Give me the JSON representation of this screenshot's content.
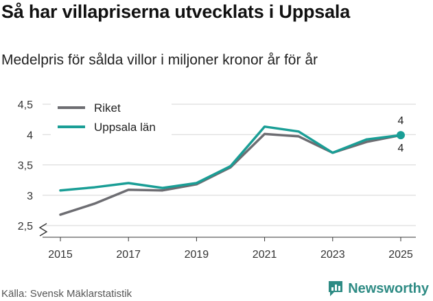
{
  "header": {
    "title": "Så har villapriserna utvecklats i Uppsala",
    "subtitle": "Medelpris för sålda villor i miljoner kronor år för år"
  },
  "footer": {
    "source": "Källa: Svensk Mäklarstatistik",
    "brand": "Newsworthy",
    "brand_color": "#2e8b84"
  },
  "chart_data": {
    "type": "line",
    "title": "Så har villapriserna utvecklats i Uppsala",
    "subtitle": "Medelpris för sålda villor i miljoner kronor år för år",
    "xlabel": "",
    "ylabel": "",
    "x": [
      2015,
      2016,
      2017,
      2018,
      2019,
      2020,
      2021,
      2022,
      2023,
      2024,
      2025
    ],
    "xticks": [
      "2015",
      "2017",
      "2019",
      "2021",
      "2023",
      "2025"
    ],
    "yticks": [
      "2,5",
      "3",
      "3,5",
      "4",
      "4,5"
    ],
    "ylim": [
      2.5,
      4.5
    ],
    "grid": true,
    "y_axis_break": true,
    "legend_position": "top-left",
    "series": [
      {
        "name": "Riket",
        "color": "#6d6d72",
        "values": [
          2.68,
          2.86,
          3.09,
          3.08,
          3.18,
          3.46,
          4.01,
          3.97,
          3.7,
          3.88,
          3.99
        ]
      },
      {
        "name": "Uppsala län",
        "color": "#1a9e96",
        "values": [
          3.08,
          3.13,
          3.2,
          3.12,
          3.2,
          3.48,
          4.13,
          4.05,
          3.7,
          3.92,
          3.99
        ]
      }
    ],
    "end_labels": [
      {
        "series": "Uppsala län",
        "text": "4"
      },
      {
        "series": "Riket",
        "text": "4"
      }
    ]
  }
}
